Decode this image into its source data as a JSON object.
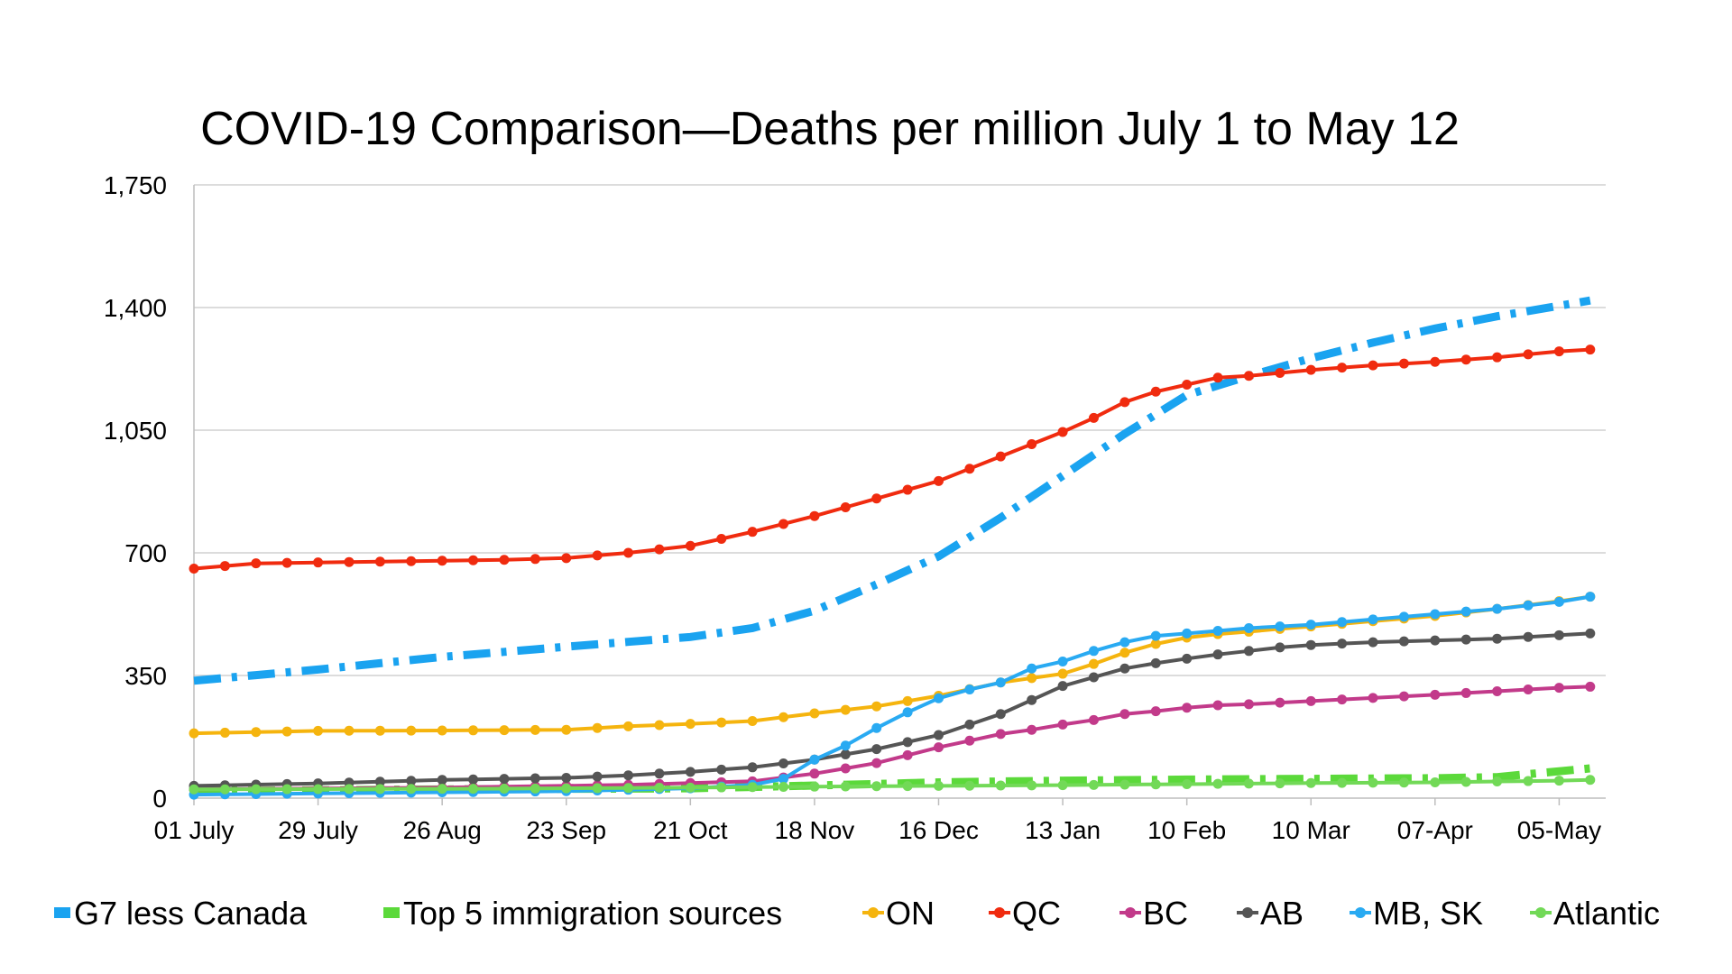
{
  "chart_data": {
    "type": "line",
    "title": "COVID-19 Comparison—Deaths per million July 1 to May 12",
    "xlabel": "",
    "ylabel": "",
    "ylim": [
      0,
      1750
    ],
    "yticks": [
      0,
      350,
      700,
      1050,
      1400,
      1750
    ],
    "ytick_labels": [
      "0",
      "350",
      "700",
      "1,050",
      "1,400",
      "1,750"
    ],
    "x_tick_labels": [
      "01 July",
      "29 July",
      "26 Aug",
      "23 Sep",
      "21 Oct",
      "18 Nov",
      "16 Dec",
      "13 Jan",
      "10 Feb",
      "10 Mar",
      "07-Apr",
      "05-May"
    ],
    "x_tick_week_index": [
      0,
      4,
      8,
      12,
      16,
      20,
      24,
      28,
      32,
      36,
      40,
      44
    ],
    "x_week_count": 46,
    "grid": "horizontal",
    "legend_position": "bottom",
    "series": [
      {
        "name": "G7 less Canada",
        "color": "#1aa3f0",
        "style": "dashdot-thick",
        "anchors": [
          [
            0,
            335
          ],
          [
            4,
            367
          ],
          [
            8,
            403
          ],
          [
            12,
            432
          ],
          [
            16,
            460
          ],
          [
            18,
            485
          ],
          [
            20,
            535
          ],
          [
            22,
            610
          ],
          [
            24,
            690
          ],
          [
            26,
            800
          ],
          [
            28,
            920
          ],
          [
            30,
            1040
          ],
          [
            32,
            1150
          ],
          [
            34,
            1205
          ],
          [
            36,
            1255
          ],
          [
            38,
            1300
          ],
          [
            40,
            1340
          ],
          [
            42,
            1375
          ],
          [
            45,
            1420
          ]
        ]
      },
      {
        "name": "Top 5 immigration sources",
        "color": "#5bd93a",
        "style": "dashdot-thick",
        "anchors": [
          [
            0,
            20
          ],
          [
            8,
            25
          ],
          [
            16,
            28
          ],
          [
            20,
            36
          ],
          [
            24,
            45
          ],
          [
            28,
            50
          ],
          [
            32,
            53
          ],
          [
            36,
            55
          ],
          [
            40,
            57
          ],
          [
            42,
            60
          ],
          [
            45,
            85
          ]
        ]
      },
      {
        "name": "ON",
        "color": "#f5b40e",
        "style": "line-dots",
        "anchors": [
          [
            0,
            185
          ],
          [
            4,
            192
          ],
          [
            8,
            193
          ],
          [
            12,
            195
          ],
          [
            14,
            205
          ],
          [
            16,
            212
          ],
          [
            18,
            220
          ],
          [
            20,
            242
          ],
          [
            22,
            262
          ],
          [
            24,
            292
          ],
          [
            26,
            330
          ],
          [
            28,
            355
          ],
          [
            29,
            383
          ],
          [
            30,
            415
          ],
          [
            31,
            440
          ],
          [
            32,
            458
          ],
          [
            33,
            468
          ],
          [
            34,
            475
          ],
          [
            35,
            483
          ],
          [
            36,
            490
          ],
          [
            38,
            505
          ],
          [
            40,
            520
          ],
          [
            42,
            540
          ],
          [
            44,
            562
          ],
          [
            45,
            575
          ]
        ]
      },
      {
        "name": "QC",
        "color": "#f02b0f",
        "style": "line-dots",
        "anchors": [
          [
            0,
            655
          ],
          [
            2,
            670
          ],
          [
            6,
            675
          ],
          [
            10,
            680
          ],
          [
            12,
            685
          ],
          [
            14,
            700
          ],
          [
            16,
            720
          ],
          [
            18,
            760
          ],
          [
            20,
            805
          ],
          [
            22,
            855
          ],
          [
            24,
            905
          ],
          [
            26,
            975
          ],
          [
            27,
            1010
          ],
          [
            28,
            1045
          ],
          [
            29,
            1085
          ],
          [
            30,
            1130
          ],
          [
            31,
            1160
          ],
          [
            32,
            1180
          ],
          [
            33,
            1200
          ],
          [
            34,
            1205
          ],
          [
            36,
            1222
          ],
          [
            38,
            1235
          ],
          [
            40,
            1245
          ],
          [
            42,
            1258
          ],
          [
            44,
            1275
          ],
          [
            45,
            1280
          ]
        ]
      },
      {
        "name": "BC",
        "color": "#c23a8a",
        "style": "line-dots",
        "anchors": [
          [
            0,
            25
          ],
          [
            8,
            30
          ],
          [
            14,
            38
          ],
          [
            18,
            48
          ],
          [
            20,
            70
          ],
          [
            22,
            100
          ],
          [
            24,
            145
          ],
          [
            26,
            183
          ],
          [
            27,
            195
          ],
          [
            28,
            210
          ],
          [
            29,
            223
          ],
          [
            30,
            240
          ],
          [
            31,
            248
          ],
          [
            32,
            258
          ],
          [
            33,
            265
          ],
          [
            34,
            268
          ],
          [
            36,
            277
          ],
          [
            38,
            286
          ],
          [
            40,
            295
          ],
          [
            42,
            305
          ],
          [
            44,
            315
          ],
          [
            45,
            318
          ]
        ]
      },
      {
        "name": "AB",
        "color": "#555555",
        "style": "line-dots",
        "anchors": [
          [
            0,
            35
          ],
          [
            4,
            42
          ],
          [
            8,
            52
          ],
          [
            12,
            58
          ],
          [
            14,
            65
          ],
          [
            16,
            75
          ],
          [
            18,
            88
          ],
          [
            20,
            110
          ],
          [
            22,
            140
          ],
          [
            24,
            180
          ],
          [
            26,
            240
          ],
          [
            27,
            280
          ],
          [
            28,
            320
          ],
          [
            29,
            345
          ],
          [
            30,
            370
          ],
          [
            31,
            385
          ],
          [
            32,
            398
          ],
          [
            33,
            410
          ],
          [
            34,
            420
          ],
          [
            35,
            430
          ],
          [
            36,
            437
          ],
          [
            38,
            445
          ],
          [
            40,
            450
          ],
          [
            42,
            455
          ],
          [
            44,
            465
          ],
          [
            45,
            470
          ]
        ]
      },
      {
        "name": "MB, SK",
        "color": "#29aaf2",
        "style": "line-dots",
        "anchors": [
          [
            0,
            10
          ],
          [
            6,
            15
          ],
          [
            12,
            20
          ],
          [
            16,
            28
          ],
          [
            18,
            38
          ],
          [
            19,
            55
          ],
          [
            20,
            110
          ],
          [
            21,
            150
          ],
          [
            22,
            200
          ],
          [
            23,
            245
          ],
          [
            24,
            285
          ],
          [
            25,
            310
          ],
          [
            26,
            330
          ],
          [
            27,
            370
          ],
          [
            28,
            390
          ],
          [
            29,
            420
          ],
          [
            30,
            445
          ],
          [
            31,
            463
          ],
          [
            32,
            470
          ],
          [
            34,
            485
          ],
          [
            36,
            495
          ],
          [
            38,
            510
          ],
          [
            40,
            525
          ],
          [
            42,
            540
          ],
          [
            44,
            560
          ],
          [
            45,
            575
          ]
        ]
      },
      {
        "name": "Atlantic",
        "color": "#72d957",
        "style": "line-dots",
        "anchors": [
          [
            0,
            25
          ],
          [
            10,
            27
          ],
          [
            16,
            30
          ],
          [
            20,
            33
          ],
          [
            24,
            35
          ],
          [
            28,
            37
          ],
          [
            32,
            40
          ],
          [
            36,
            43
          ],
          [
            40,
            45
          ],
          [
            44,
            50
          ],
          [
            45,
            52
          ]
        ]
      }
    ]
  }
}
